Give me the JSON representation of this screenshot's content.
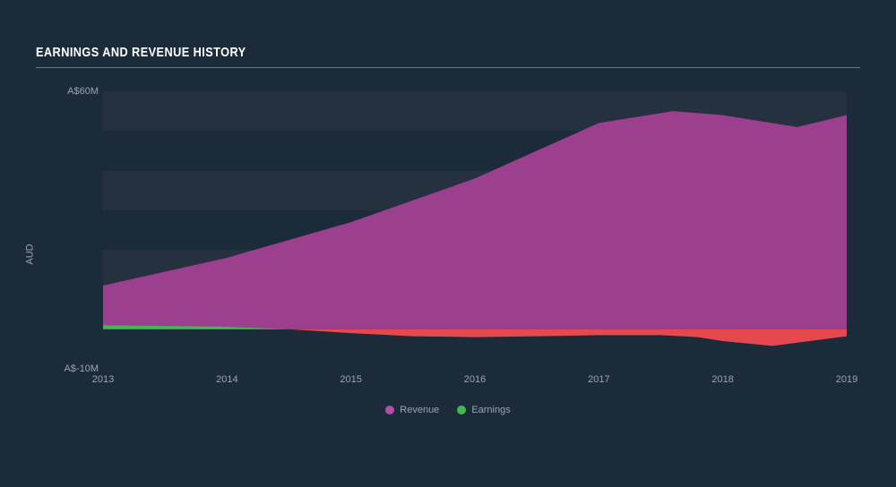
{
  "chart": {
    "type": "area",
    "title": "EARNINGS AND REVENUE HISTORY",
    "background_color": "#1c2b3a",
    "grid_band_color": "#25313f",
    "text_color": "#9aa5b1",
    "title_color": "#ffffff",
    "title_fontsize": 15,
    "tick_fontsize": 11,
    "y_axis": {
      "label": "AUD",
      "ticks": [
        {
          "value": -10,
          "label": "A$-10M"
        },
        {
          "value": 60,
          "label": "A$60M"
        }
      ],
      "min": -10,
      "max": 60,
      "grid_bands": [
        {
          "from": 10,
          "to": 20
        },
        {
          "from": 30,
          "to": 40
        },
        {
          "from": 50,
          "to": 60
        }
      ]
    },
    "x_axis": {
      "ticks": [
        "2013",
        "2014",
        "2015",
        "2016",
        "2017",
        "2018",
        "2019"
      ],
      "min": 2013,
      "max": 2019
    },
    "series": [
      {
        "name": "Revenue",
        "color": "#9b3f8e",
        "legend_color": "#b84aa9",
        "fill_opacity": 1.0,
        "data": [
          {
            "x": 2013,
            "y": 11
          },
          {
            "x": 2014,
            "y": 18
          },
          {
            "x": 2015,
            "y": 27
          },
          {
            "x": 2016,
            "y": 38
          },
          {
            "x": 2017,
            "y": 52
          },
          {
            "x": 2017.6,
            "y": 55
          },
          {
            "x": 2018,
            "y": 54
          },
          {
            "x": 2018.6,
            "y": 51
          },
          {
            "x": 2019,
            "y": 54
          }
        ]
      },
      {
        "name": "Earnings",
        "positive_color": "#3fb950",
        "negative_color": "#e5484d",
        "legend_color": "#3fb950",
        "fill_opacity": 1.0,
        "data": [
          {
            "x": 2013,
            "y": 1.0
          },
          {
            "x": 2013.5,
            "y": 0.8
          },
          {
            "x": 2014,
            "y": 0.6
          },
          {
            "x": 2014.5,
            "y": 0.0
          },
          {
            "x": 2015,
            "y": -1.0
          },
          {
            "x": 2015.5,
            "y": -1.8
          },
          {
            "x": 2016,
            "y": -2.0
          },
          {
            "x": 2016.5,
            "y": -1.8
          },
          {
            "x": 2017,
            "y": -1.5
          },
          {
            "x": 2017.5,
            "y": -1.5
          },
          {
            "x": 2017.8,
            "y": -2.0
          },
          {
            "x": 2018,
            "y": -3.0
          },
          {
            "x": 2018.4,
            "y": -4.2
          },
          {
            "x": 2018.7,
            "y": -3.0
          },
          {
            "x": 2019,
            "y": -1.8
          }
        ]
      }
    ],
    "legend": {
      "items": [
        {
          "label": "Revenue",
          "color": "#b84aa9"
        },
        {
          "label": "Earnings",
          "color": "#3fb950"
        }
      ]
    }
  }
}
